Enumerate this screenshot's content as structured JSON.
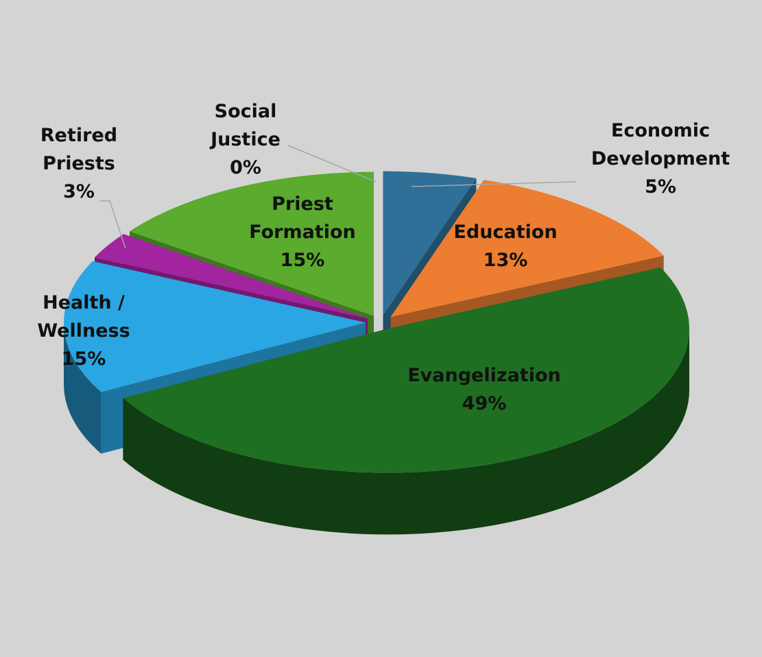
{
  "chart_data": {
    "type": "pie3d",
    "categories": [
      "Economic Development",
      "Education",
      "Evangelization",
      "Health / Wellness",
      "Retired Priests",
      "Priest Formation",
      "Social Justice"
    ],
    "values": [
      5,
      13,
      49,
      15,
      3,
      15,
      0
    ],
    "value_labels": [
      "5%",
      "13%",
      "49%",
      "15%",
      "3%",
      "15%",
      "0%"
    ],
    "colors": [
      "#2f6f98",
      "#ed7d31",
      "#1f6f22",
      "#2aa6e2",
      "#a3249f",
      "#5bab2e",
      "#1f4e79"
    ]
  }
}
